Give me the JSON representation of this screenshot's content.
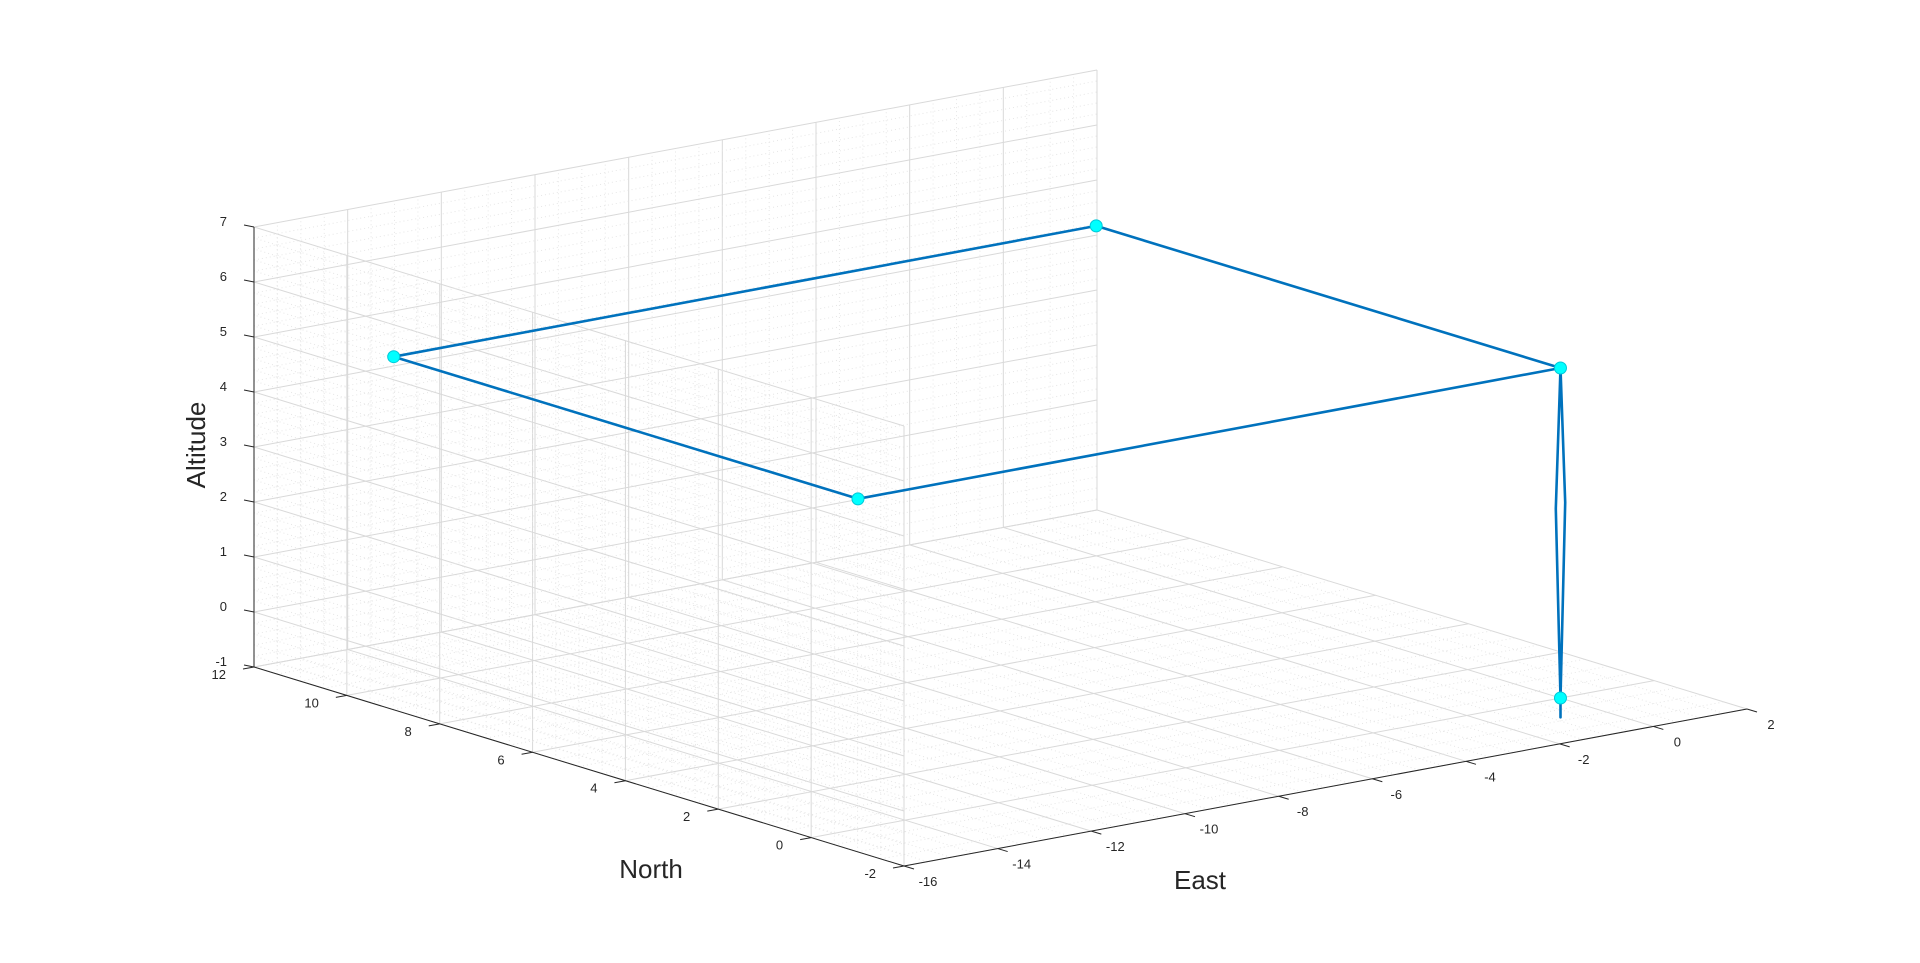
{
  "chart_data": {
    "type": "line",
    "title": "",
    "xlabel": "East",
    "ylabel": "North",
    "zlabel": "Altitude",
    "xlim": [
      -16,
      2
    ],
    "ylim": [
      -2,
      12
    ],
    "zlim": [
      -1,
      7
    ],
    "x_ticks": [
      "-16",
      "-14",
      "-12",
      "-10",
      "-8",
      "-6",
      "-4",
      "-2",
      "0",
      "2"
    ],
    "y_ticks": [
      "-2",
      "0",
      "2",
      "4",
      "6",
      "8",
      "10",
      "12"
    ],
    "z_ticks": [
      "-1",
      "0",
      "1",
      "2",
      "3",
      "4",
      "5",
      "6",
      "7"
    ],
    "grid": true,
    "minor_grid": true,
    "colors": {
      "path": "#0072BD",
      "waypoint": "#00FFFF",
      "grid": "#d9d9d9",
      "axis": "#262626"
    },
    "path": [
      {
        "east": 0,
        "north": 0,
        "altitude": -1.35
      },
      {
        "east": 0,
        "north": 0,
        "altitude": -1
      },
      {
        "east": 0.2,
        "north": 0.1,
        "altitude": 2.5
      },
      {
        "east": 0,
        "north": 0,
        "altitude": 5
      },
      {
        "east": -15,
        "north": 0,
        "altitude": 5
      },
      {
        "east": -15,
        "north": 10,
        "altitude": 5
      },
      {
        "east": 0,
        "north": 10,
        "altitude": 5
      },
      {
        "east": 0,
        "north": 0,
        "altitude": 5
      },
      {
        "east": -0.2,
        "north": -0.1,
        "altitude": 2.5
      },
      {
        "east": 0,
        "north": 0,
        "altitude": -1
      }
    ],
    "waypoints": [
      {
        "east": 0,
        "north": 0,
        "altitude": -1
      },
      {
        "east": 0,
        "north": 0,
        "altitude": 5
      },
      {
        "east": -15,
        "north": 0,
        "altitude": 5
      },
      {
        "east": -15,
        "north": 10,
        "altitude": 5
      },
      {
        "east": 0,
        "north": 10,
        "altitude": 5
      }
    ]
  }
}
